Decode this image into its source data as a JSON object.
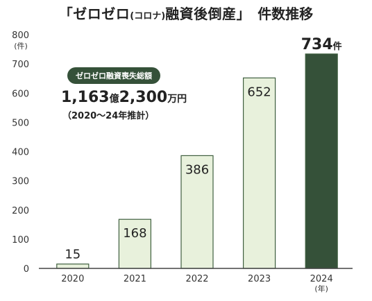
{
  "title": {
    "main": "「ゼロゼロ",
    "sub": "(コロナ)",
    "main2": "融資後倒産」",
    "tail": "件数推移"
  },
  "annotation": {
    "badge": "ゼロゼロ融資喪失総額",
    "total_num1": "1,163",
    "total_unit1": "億",
    "total_num2": "2,300",
    "total_unit2": "万円",
    "period": "（2020～24年推計）"
  },
  "colors": {
    "bar_fill": "#e8f1dc",
    "bar_stroke": "#3f5f3f",
    "highlight_fill": "#355139",
    "axis": "#444444",
    "badge": "#355139"
  },
  "chart_data": {
    "type": "bar",
    "categories": [
      "2020",
      "2021",
      "2022",
      "2023",
      "2024"
    ],
    "values": [
      15,
      168,
      386,
      652,
      734
    ],
    "value_labels": [
      "15",
      "168",
      "386",
      "652",
      "734"
    ],
    "highlight_index": 4,
    "highlight_unit": "件",
    "ylim": [
      0,
      800
    ],
    "yticks": [
      0,
      100,
      200,
      300,
      400,
      500,
      600,
      700,
      800
    ],
    "ylabel": "(件)",
    "xlabel": "(年)",
    "grid": false,
    "legend": "none"
  }
}
